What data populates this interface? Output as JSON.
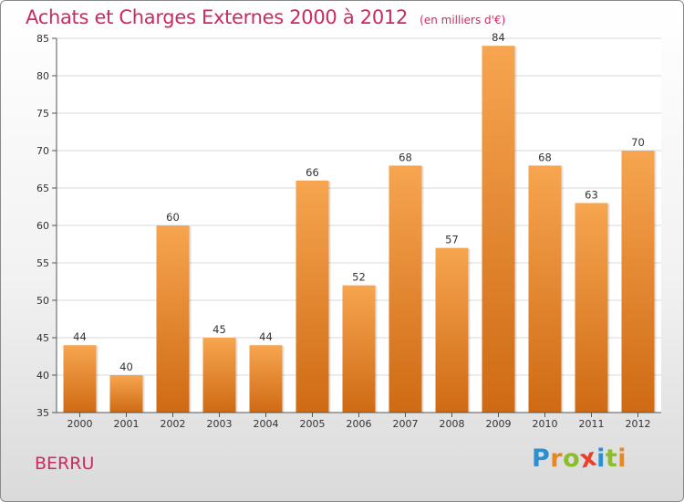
{
  "chart_data": {
    "type": "bar",
    "title": "Achats et Charges Externes 2000 à 2012",
    "subtitle": "(en milliers d'€)",
    "categories": [
      "2000",
      "2001",
      "2002",
      "2003",
      "2004",
      "2005",
      "2006",
      "2007",
      "2008",
      "2009",
      "2010",
      "2011",
      "2012"
    ],
    "values": [
      44,
      40,
      60,
      45,
      44,
      66,
      52,
      68,
      57,
      84,
      68,
      63,
      70
    ],
    "xlabel": "",
    "ylabel": "",
    "ylim": [
      35,
      85
    ],
    "yticks": [
      35,
      40,
      45,
      50,
      55,
      60,
      65,
      70,
      75,
      80,
      85
    ],
    "grid": true,
    "bar_color_top": "#f7a550",
    "bar_color_bottom": "#cf6a14"
  },
  "footer": {
    "commune": "BERRU",
    "brand": "Proxiti",
    "brand_letters": [
      {
        "ch": "P",
        "color": "#2e8fd0"
      },
      {
        "ch": "r",
        "color": "#e8871e"
      },
      {
        "ch": "o",
        "color": "#8cbd2a"
      },
      {
        "ch": "x",
        "color": "#e8402a"
      },
      {
        "ch": "i",
        "color": "#2e8fd0"
      },
      {
        "ch": "t",
        "color": "#8cbd2a"
      },
      {
        "ch": "i",
        "color": "#e8871e"
      }
    ]
  }
}
